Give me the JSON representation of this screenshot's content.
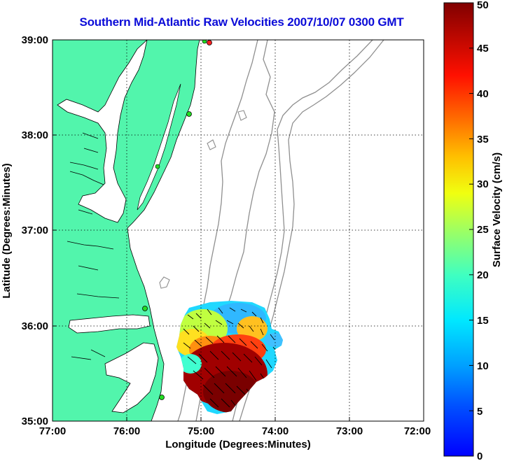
{
  "title": "Southern Mid-Atlantic Raw Velocities 2007/10/07 0300 GMT",
  "x_axis": {
    "label": "Longitude (Degrees:Minutes)",
    "ticks": [
      "77:00",
      "76:00",
      "75:00",
      "74:00",
      "73:00",
      "72:00"
    ]
  },
  "y_axis": {
    "label": "Latitude (Degrees:Minutes)",
    "ticks": [
      "35:00",
      "36:00",
      "37:00",
      "38:00",
      "39:00"
    ]
  },
  "colorbar": {
    "label": "Surface Velocity (cm/s)",
    "min": 0,
    "max": 50,
    "ticks": [
      "0",
      "5",
      "10",
      "15",
      "20",
      "25",
      "30",
      "35",
      "40",
      "45",
      "50"
    ],
    "colormap": "jet"
  },
  "map_extent": {
    "lon_west": -77,
    "lon_east": -72,
    "lat_south": 35,
    "lat_north": 39
  },
  "colors": {
    "land": "#52f5ac",
    "coast": "#000000",
    "bathymetry": "#8f8f8f",
    "grid": "#000000",
    "title": "#0b0bd8",
    "station_marker": "#22dd22",
    "station_marker_highlight": "#ff2020"
  },
  "grid": "dotted"
}
